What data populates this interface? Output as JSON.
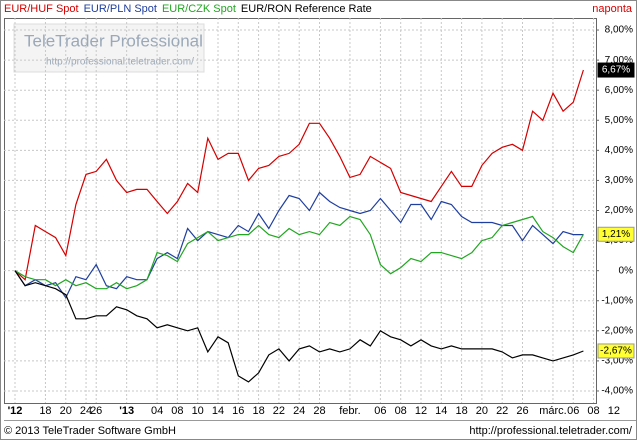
{
  "chart_data": {
    "type": "line",
    "frequency": "naponta",
    "watermark": {
      "title": "TeleTrader Professional",
      "url": "http://professional.teletrader.com/"
    },
    "footer": {
      "copyright": "© 2013 TeleTrader Software GmbH",
      "url": "http://professional.teletrader.com/"
    },
    "categories": [
      "'12",
      null,
      null,
      "18",
      null,
      "20",
      null,
      "24",
      "26",
      null,
      null,
      "'13",
      null,
      null,
      "04",
      null,
      "08",
      null,
      "10",
      null,
      "14",
      null,
      "16",
      null,
      "18",
      null,
      "22",
      null,
      "24",
      null,
      "28",
      null,
      null,
      "febr.",
      null,
      null,
      "06",
      null,
      "08",
      null,
      "12",
      null,
      "14",
      null,
      "18",
      null,
      "20",
      null,
      "22",
      null,
      "26",
      null,
      null,
      "márc.",
      null,
      "06",
      null,
      "08",
      null,
      "12"
    ],
    "ylim": [
      -4.4,
      8.4
    ],
    "yticks": [
      {
        "value": 8,
        "label": "8,00%"
      },
      {
        "value": 7,
        "label": "7,00%"
      },
      {
        "value": 6,
        "label": "6,00%"
      },
      {
        "value": 5,
        "label": "5,00%"
      },
      {
        "value": 4,
        "label": "4,00%"
      },
      {
        "value": 3,
        "label": "3,00%"
      },
      {
        "value": 2,
        "label": "2,00%"
      },
      {
        "value": 1,
        "label": "1,00%"
      },
      {
        "value": 0,
        "label": "0%"
      },
      {
        "value": -1,
        "label": "-1,00%"
      },
      {
        "value": -2,
        "label": "-2,00%"
      },
      {
        "value": -3,
        "label": "-3,00%"
      },
      {
        "value": -4,
        "label": "-4,00%"
      }
    ],
    "grid": true,
    "series": [
      {
        "name": "EUR/HUF Spot",
        "color": "#d40000",
        "end_label": "6,67%",
        "end_label_style": "dark",
        "values": [
          0,
          -0.3,
          1.5,
          1.3,
          1.1,
          0.5,
          2.2,
          3.2,
          3.3,
          3.7,
          3.0,
          2.6,
          2.7,
          2.7,
          2.3,
          1.9,
          2.3,
          2.9,
          2.6,
          4.4,
          3.7,
          3.9,
          3.9,
          3.0,
          3.4,
          3.5,
          3.8,
          3.9,
          4.2,
          4.9,
          4.9,
          4.4,
          3.8,
          3.1,
          3.2,
          3.8,
          3.6,
          3.4,
          2.6,
          2.5,
          2.4,
          2.3,
          2.8,
          3.3,
          2.8,
          2.8,
          3.5,
          3.9,
          4.1,
          4.2,
          4.0,
          5.3,
          5.0,
          5.9,
          5.3,
          5.6,
          6.67,
          null,
          null,
          null
        ]
      },
      {
        "name": "EUR/PLN Spot",
        "color": "#1f3fa0",
        "values": [
          0,
          -0.5,
          -0.3,
          -0.5,
          -0.4,
          -0.9,
          -0.2,
          -0.3,
          0.2,
          -0.5,
          -0.6,
          -0.2,
          -0.3,
          -0.3,
          0.4,
          0.6,
          0.4,
          1.4,
          1.0,
          1.3,
          1.2,
          1.1,
          1.5,
          1.3,
          1.9,
          1.4,
          2.0,
          2.5,
          2.4,
          2.0,
          2.6,
          2.3,
          2.1,
          2.0,
          1.9,
          2.0,
          2.4,
          2.0,
          1.6,
          2.2,
          2.2,
          1.7,
          2.3,
          2.2,
          1.8,
          1.6,
          1.6,
          1.6,
          1.5,
          1.5,
          1.0,
          1.5,
          1.2,
          0.9,
          1.3,
          1.2,
          1.2,
          null,
          null,
          null
        ]
      },
      {
        "name": "EUR/CZK Spot",
        "color": "#22a622",
        "end_label": "1,21%",
        "end_label_style": "yellow",
        "values": [
          0,
          -0.2,
          -0.3,
          -0.3,
          -0.5,
          -0.3,
          -0.5,
          -0.4,
          -0.6,
          -0.6,
          -0.4,
          -0.6,
          -0.5,
          -0.3,
          0.6,
          0.5,
          0.3,
          0.9,
          1.1,
          1.3,
          1.0,
          1.1,
          1.2,
          1.2,
          1.5,
          1.2,
          1.1,
          1.4,
          1.2,
          1.3,
          1.2,
          1.6,
          1.5,
          1.8,
          1.7,
          1.2,
          0.2,
          -0.1,
          0.1,
          0.4,
          0.3,
          0.6,
          0.6,
          0.5,
          0.4,
          0.6,
          1.0,
          1.1,
          1.5,
          1.6,
          1.7,
          1.8,
          1.3,
          1.1,
          0.8,
          0.6,
          1.21,
          null,
          null,
          null
        ]
      },
      {
        "name": "EUR/RON Reference Rate",
        "color": "#000000",
        "end_label": "-2,67%",
        "end_label_style": "yellow",
        "values": [
          0,
          -0.5,
          -0.4,
          -0.5,
          -0.6,
          -0.8,
          -1.6,
          -1.6,
          -1.5,
          -1.5,
          -1.2,
          -1.3,
          -1.5,
          -1.6,
          -1.9,
          -1.8,
          -1.9,
          -2.0,
          -1.9,
          -2.7,
          -2.2,
          -2.4,
          -3.5,
          -3.7,
          -3.4,
          -2.8,
          -2.6,
          -3.0,
          -2.6,
          -2.5,
          -2.7,
          -2.6,
          -2.7,
          -2.6,
          -2.3,
          -2.5,
          -2.0,
          -2.2,
          -2.3,
          -2.5,
          -2.3,
          -2.5,
          -2.6,
          -2.5,
          -2.6,
          -2.6,
          -2.6,
          -2.6,
          -2.7,
          -2.9,
          -2.8,
          -2.8,
          -2.9,
          -3.0,
          -2.9,
          -2.8,
          -2.67,
          null,
          null,
          null
        ]
      }
    ]
  }
}
